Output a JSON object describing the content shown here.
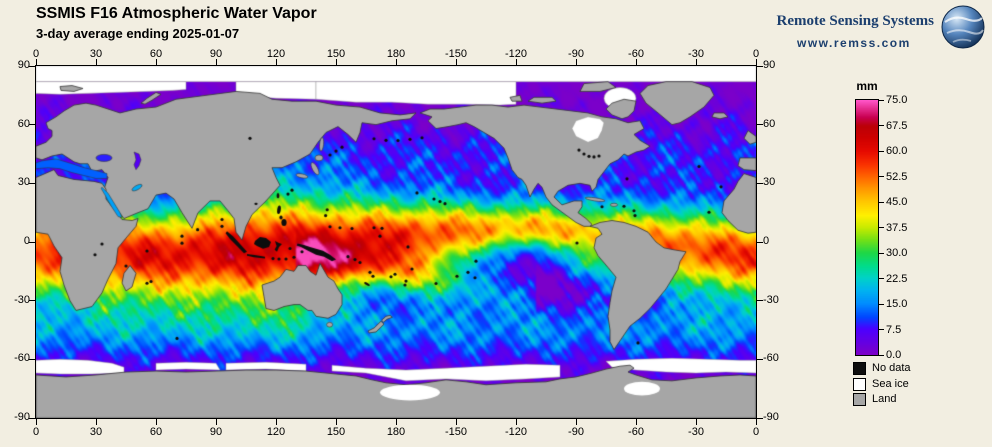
{
  "header": {
    "title": "SSMIS F16 Atmospheric Water Vapor",
    "subtitle": "3-day average ending 2025-01-07"
  },
  "branding": {
    "name": "Remote Sensing Systems",
    "url": "www.remss.com",
    "color": "#1c3f6e"
  },
  "page_background": "#f2eee1",
  "axes": {
    "lon_ticks": [
      "0",
      "30",
      "60",
      "90",
      "120",
      "150",
      "180",
      "-150",
      "-120",
      "-90",
      "-60",
      "-30",
      "0"
    ],
    "lat_ticks": [
      "90",
      "60",
      "30",
      "0",
      "-30",
      "-60",
      "-90"
    ]
  },
  "colorbar": {
    "unit": "mm",
    "tick_labels": [
      "75.0",
      "67.5",
      "60.0",
      "52.5",
      "45.0",
      "37.5",
      "30.0",
      "22.5",
      "15.0",
      "7.5",
      "0.0"
    ],
    "gradient_stops": [
      {
        "v": 0,
        "c": "#7d00c8"
      },
      {
        "v": 7.5,
        "c": "#4b00ff"
      },
      {
        "v": 11,
        "c": "#0046ff"
      },
      {
        "v": 15,
        "c": "#008cff"
      },
      {
        "v": 19,
        "c": "#00b4f0"
      },
      {
        "v": 22.5,
        "c": "#00d2c8"
      },
      {
        "v": 26,
        "c": "#00dc8c"
      },
      {
        "v": 30,
        "c": "#1ed746"
      },
      {
        "v": 34,
        "c": "#78e114"
      },
      {
        "v": 37.5,
        "c": "#c8eb00"
      },
      {
        "v": 41,
        "c": "#fff000"
      },
      {
        "v": 45,
        "c": "#ffc800"
      },
      {
        "v": 49,
        "c": "#ff9600"
      },
      {
        "v": 52.5,
        "c": "#ff6400"
      },
      {
        "v": 56,
        "c": "#fa3200"
      },
      {
        "v": 60,
        "c": "#e60a00"
      },
      {
        "v": 64,
        "c": "#cd0000"
      },
      {
        "v": 67.5,
        "c": "#bb0008"
      },
      {
        "v": 70,
        "c": "#c80050"
      },
      {
        "v": 75,
        "c": "#ff55c8"
      }
    ]
  },
  "legend": {
    "items": [
      {
        "label": "No data",
        "color": "#0d0d0d"
      },
      {
        "label": "Sea ice",
        "color": "#ffffff"
      },
      {
        "label": "Land",
        "color": "#a6a6a6"
      }
    ]
  },
  "chart_data": {
    "type": "heatmap",
    "title": "SSMIS F16 Atmospheric Water Vapor",
    "subtitle": "3-day average ending 2025-01-07",
    "variable": "columnar atmospheric water vapor",
    "units": "mm",
    "value_range": [
      0,
      75
    ],
    "colorbar_ticks": [
      0.0,
      7.5,
      15.0,
      22.5,
      30.0,
      37.5,
      45.0,
      52.5,
      60.0,
      67.5,
      75.0
    ],
    "lon_range": [
      0,
      360
    ],
    "lat_range": [
      -90,
      90
    ],
    "lon_tick_step_deg": 30,
    "lat_tick_step_deg": 30,
    "projection": "equirectangular, Pacific-centered (180 at map center)",
    "zonal_profile": {
      "latitudes": [
        90,
        75,
        60,
        45,
        30,
        15,
        0,
        -15,
        -30,
        -45,
        -60,
        -75,
        -90
      ],
      "mean_mm": [
        0,
        1,
        4,
        10,
        18,
        38,
        52,
        45,
        24,
        16,
        8,
        1,
        0
      ]
    },
    "features": [
      "red ITCZ band 50-65 mm across the tropics, strongest over Indian Ocean / Maritime Continent / west Pacific warm pool",
      "SPCZ diagonal red band from New Guinea toward the southeast Pacific",
      "dry equatorial cold tongue (cyan/green) in the east Pacific",
      "subtropical dry zones 15-25 mm",
      "northern winter mid-latitudes blue/cyan, southern summer mid-latitudes green",
      "polar oceans below 7.5 mm (purple)",
      "gray land mask, white sea ice at high latitudes and around Antarctica",
      "black no-data specks over small islands and lakes"
    ],
    "legend": [
      "No data",
      "Sea ice",
      "Land"
    ]
  }
}
